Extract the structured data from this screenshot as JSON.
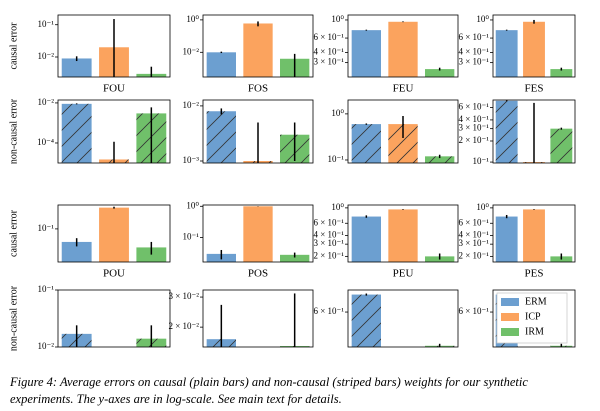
{
  "chart_data": [
    {
      "type": "bar",
      "log": true,
      "hatch": false,
      "ylabel": "causal error",
      "xlabel": "FOU",
      "ylim": [
        0.0024,
        0.2
      ],
      "yticks": [
        {
          "value": 0.01,
          "label": "10⁻²"
        },
        {
          "value": 0.1,
          "label": "10⁻¹"
        }
      ],
      "values": [
        0.009,
        0.02,
        0.003
      ],
      "errors": [
        0.0015,
        0.13,
        0.002
      ],
      "colors": [
        "#6c9fd0",
        "#fba35e",
        "#70c06a"
      ]
    },
    {
      "type": "bar",
      "log": true,
      "hatch": false,
      "xlabel": "FOS",
      "ylim": [
        0.0003,
        2
      ],
      "yticks": [
        {
          "value": 0.01,
          "label": "10⁻²"
        },
        {
          "value": 1,
          "label": "10⁰"
        }
      ],
      "values": [
        0.01,
        0.6,
        0.004
      ],
      "errors": [
        0.001,
        0.2,
        0.004
      ],
      "colors": [
        "#6c9fd0",
        "#fba35e",
        "#70c06a"
      ]
    },
    {
      "type": "bar",
      "log": true,
      "hatch": false,
      "xlabel": "FEU",
      "ylim": [
        0.2,
        1.15
      ],
      "yticks": [
        {
          "value": 0.3,
          "label": "3 × 10⁻¹"
        },
        {
          "value": 0.4,
          "label": "4 × 10⁻¹"
        },
        {
          "value": 0.6,
          "label": "6 × 10⁻¹"
        },
        {
          "value": 1,
          "label": "10⁰"
        }
      ],
      "values": [
        0.75,
        0.95,
        0.25
      ],
      "errors": [
        0.01,
        0.01,
        0.01
      ],
      "colors": [
        "#6c9fd0",
        "#fba35e",
        "#70c06a"
      ]
    },
    {
      "type": "bar",
      "log": true,
      "hatch": false,
      "xlabel": "FES",
      "ylim": [
        0.2,
        1.15
      ],
      "yticks": [
        {
          "value": 0.3,
          "label": "3 × 10⁻¹"
        },
        {
          "value": 0.4,
          "label": "4 × 10⁻¹"
        },
        {
          "value": 0.6,
          "label": "6 × 10⁻¹"
        },
        {
          "value": 1,
          "label": "10⁰"
        }
      ],
      "values": [
        0.75,
        0.95,
        0.25
      ],
      "errors": [
        0.01,
        0.05,
        0.01
      ],
      "colors": [
        "#6c9fd0",
        "#fba35e",
        "#70c06a"
      ]
    },
    {
      "type": "bar",
      "log": true,
      "hatch": true,
      "ylabel": "non-causal error",
      "ylim": [
        1e-05,
        0.014
      ],
      "yticks": [
        {
          "value": 0.0001,
          "label": "10⁻⁴"
        },
        {
          "value": 0.01,
          "label": "10⁻²"
        }
      ],
      "values": [
        0.009,
        1.5e-05,
        0.003
      ],
      "errors": [
        0.0005,
        0.0001,
        0.003
      ],
      "colors": [
        "#6c9fd0",
        "#fba35e",
        "#70c06a"
      ]
    },
    {
      "type": "bar",
      "log": true,
      "hatch": true,
      "ylim": [
        0.00092,
        0.0128
      ],
      "yticks": [
        {
          "value": 0.001,
          "label": "10⁻³"
        },
        {
          "value": 0.01,
          "label": "10⁻²"
        }
      ],
      "values": [
        0.008,
        0.001,
        0.003
      ],
      "errors": [
        0.001,
        0.004,
        0.002
      ],
      "colors": [
        "#6c9fd0",
        "#fba35e",
        "#70c06a"
      ]
    },
    {
      "type": "bar",
      "log": true,
      "hatch": true,
      "ylim": [
        0.086,
        2
      ],
      "yticks": [
        {
          "value": 0.1,
          "label": "10⁻¹"
        },
        {
          "value": 1,
          "label": "10⁰"
        }
      ],
      "values": [
        0.6,
        0.6,
        0.12
      ],
      "errors": [
        0.02,
        0.3,
        0.01
      ],
      "colors": [
        "#6c9fd0",
        "#fba35e",
        "#70c06a"
      ]
    },
    {
      "type": "bar",
      "log": true,
      "hatch": true,
      "ylim": [
        0.097,
        0.77
      ],
      "yticks": [
        {
          "value": 0.1,
          "label": "10⁻¹"
        },
        {
          "value": 0.2,
          "label": "2 × 10⁻¹"
        },
        {
          "value": 0.3,
          "label": "3 × 10⁻¹"
        },
        {
          "value": 0.4,
          "label": "4 × 10⁻¹"
        },
        {
          "value": 0.6,
          "label": "6 × 10⁻¹"
        }
      ],
      "values": [
        0.75,
        0.1,
        0.3
      ],
      "errors": [
        0.01,
        0.6,
        0.01
      ],
      "colors": [
        "#6c9fd0",
        "#fba35e",
        "#70c06a"
      ]
    },
    {
      "type": "bar",
      "log": true,
      "hatch": false,
      "ylabel": "causal error",
      "xlabel": "POU",
      "ylim": [
        0.024,
        0.28
      ],
      "yticks": [
        {
          "value": 0.1,
          "label": "10⁻¹"
        }
      ],
      "values": [
        0.057,
        0.25,
        0.045
      ],
      "errors": [
        0.01,
        0.01,
        0.012
      ],
      "colors": [
        "#6c9fd0",
        "#fba35e",
        "#70c06a"
      ]
    },
    {
      "type": "bar",
      "log": true,
      "hatch": false,
      "xlabel": "POS",
      "ylim": [
        0.0165,
        1.1
      ],
      "yticks": [
        {
          "value": 0.1,
          "label": "10⁻¹"
        },
        {
          "value": 1,
          "label": "10⁰"
        }
      ],
      "values": [
        0.03,
        1,
        0.028
      ],
      "errors": [
        0.01,
        0.01,
        0.005
      ],
      "colors": [
        "#6c9fd0",
        "#fba35e",
        "#70c06a"
      ]
    },
    {
      "type": "bar",
      "log": true,
      "hatch": false,
      "xlabel": "PEU",
      "ylim": [
        0.166,
        1.1
      ],
      "yticks": [
        {
          "value": 0.2,
          "label": "2 × 10⁻¹"
        },
        {
          "value": 0.3,
          "label": "3 × 10⁻¹"
        },
        {
          "value": 0.4,
          "label": "4 × 10⁻¹"
        },
        {
          "value": 0.6,
          "label": "6 × 10⁻¹"
        },
        {
          "value": 1,
          "label": "10⁰"
        }
      ],
      "values": [
        0.75,
        0.95,
        0.2
      ],
      "errors": [
        0.03,
        0.01,
        0.02
      ],
      "colors": [
        "#6c9fd0",
        "#fba35e",
        "#70c06a"
      ]
    },
    {
      "type": "bar",
      "log": true,
      "hatch": false,
      "xlabel": "PES",
      "ylim": [
        0.166,
        1.1
      ],
      "yticks": [
        {
          "value": 0.2,
          "label": "2 × 10⁻¹"
        },
        {
          "value": 0.3,
          "label": "3 × 10⁻¹"
        },
        {
          "value": 0.4,
          "label": "4 × 10⁻¹"
        },
        {
          "value": 0.6,
          "label": "6 × 10⁻¹"
        },
        {
          "value": 1,
          "label": "10⁰"
        }
      ],
      "values": [
        0.75,
        0.95,
        0.2
      ],
      "errors": [
        0.04,
        0.01,
        0.02
      ],
      "colors": [
        "#6c9fd0",
        "#fba35e",
        "#70c06a"
      ]
    },
    {
      "type": "bar",
      "log": true,
      "hatch": true,
      "ylabel": "non-causal error",
      "ylim": [
        0.01,
        0.1
      ],
      "yticks": [
        {
          "value": 0.01,
          "label": "10⁻²"
        },
        {
          "value": 0.1,
          "label": "10⁻¹"
        }
      ],
      "values": [
        0.017,
        null,
        0.014
      ],
      "errors": [
        0.007,
        null,
        0.01
      ],
      "colors": [
        "#6c9fd0",
        "#fba35e",
        "#70c06a"
      ]
    },
    {
      "type": "bar",
      "log": true,
      "hatch": true,
      "ylim": [
        0.0153,
        0.033
      ],
      "yticks": [
        {
          "value": 0.02,
          "label": "2 × 10⁻²"
        },
        {
          "value": 0.03,
          "label": "3 × 10⁻²"
        }
      ],
      "values": [
        0.017,
        null,
        0.0155
      ],
      "errors": [
        0.01,
        null,
        0.016
      ],
      "colors": [
        "#6c9fd0",
        "#fba35e",
        "#70c06a"
      ]
    },
    {
      "type": "bar",
      "log": true,
      "hatch": true,
      "ylim": [
        0.384,
        0.795
      ],
      "yticks": [
        {
          "value": 0.6,
          "label": "6 × 10⁻¹"
        }
      ],
      "values": [
        0.75,
        null,
        0.39
      ],
      "errors": [
        0.01,
        null,
        0.01
      ],
      "colors": [
        "#6c9fd0",
        "#fba35e",
        "#70c06a"
      ]
    },
    {
      "type": "bar",
      "log": true,
      "hatch": true,
      "ylim": [
        0.384,
        0.795
      ],
      "yticks": [
        {
          "value": 0.6,
          "label": "6 × 10⁻¹"
        }
      ],
      "values": [
        0.75,
        null,
        0.39
      ],
      "errors": [
        0.01,
        null,
        0.01
      ],
      "colors": [
        "#6c9fd0",
        "#fba35e",
        "#70c06a"
      ],
      "legend": [
        {
          "name": "ERM",
          "color": "#6c9fd0"
        },
        {
          "name": "ICP",
          "color": "#fba35e"
        },
        {
          "name": "IRM",
          "color": "#70c06a"
        }
      ]
    }
  ],
  "caption": "Figure 4: Average errors on causal (plain bars) and non-causal (striped bars) weights for our synthetic experiments. The y-axes are in log-scale. See main text for details."
}
